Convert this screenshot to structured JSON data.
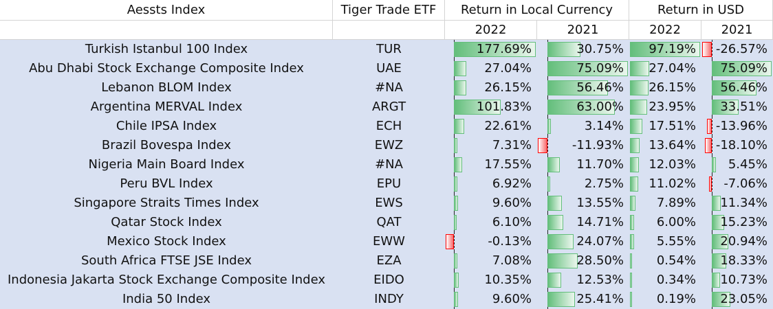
{
  "headers": {
    "asset": "Aessts Index",
    "etf": "Tiger Trade ETF",
    "local": "Return in Local Currency",
    "usd": "Return in USD",
    "y2022": "2022",
    "y2021": "2021"
  },
  "colors": {
    "positive_bar": "#63be7b",
    "negative_bar": "#f8696b",
    "row_fill": "#d9e1f2"
  },
  "rows": [
    {
      "index": "Turkish Istanbul 100 Index",
      "etf": "TUR",
      "local_2022": "177.69%",
      "local_2021": "30.75%",
      "usd_2022": "97.19%",
      "usd_2021": "-26.57%"
    },
    {
      "index": "Abu Dhabi Stock Exchange Composite Index",
      "etf": "UAE",
      "local_2022": "27.04%",
      "local_2021": "75.09%",
      "usd_2022": "27.04%",
      "usd_2021": "75.09%"
    },
    {
      "index": "Lebanon BLOM Index",
      "etf": "#NA",
      "local_2022": "26.15%",
      "local_2021": "56.46%",
      "usd_2022": "26.15%",
      "usd_2021": "56.46%"
    },
    {
      "index": "Argentina MERVAL Index",
      "etf": "ARGT",
      "local_2022": "101.83%",
      "local_2021": "63.00%",
      "usd_2022": "23.95%",
      "usd_2021": "33.51%"
    },
    {
      "index": "Chile IPSA Index",
      "etf": "ECH",
      "local_2022": "22.61%",
      "local_2021": "3.14%",
      "usd_2022": "17.51%",
      "usd_2021": "-13.96%"
    },
    {
      "index": "Brazil Bovespa Index",
      "etf": "EWZ",
      "local_2022": "7.31%",
      "local_2021": "-11.93%",
      "usd_2022": "13.64%",
      "usd_2021": "-18.10%"
    },
    {
      "index": "Nigeria Main Board Index",
      "etf": "#NA",
      "local_2022": "17.55%",
      "local_2021": "11.70%",
      "usd_2022": "12.03%",
      "usd_2021": "5.45%"
    },
    {
      "index": "Peru BVL Index",
      "etf": "EPU",
      "local_2022": "6.92%",
      "local_2021": "2.75%",
      "usd_2022": "11.02%",
      "usd_2021": "-7.06%"
    },
    {
      "index": "Singapore Straits Times Index",
      "etf": "EWS",
      "local_2022": "9.60%",
      "local_2021": "13.55%",
      "usd_2022": "7.89%",
      "usd_2021": "11.34%"
    },
    {
      "index": "Qatar Stock Index",
      "etf": "QAT",
      "local_2022": "6.10%",
      "local_2021": "14.71%",
      "usd_2022": "6.00%",
      "usd_2021": "15.23%"
    },
    {
      "index": "Mexico Stock Index",
      "etf": "EWW",
      "local_2022": "-0.13%",
      "local_2021": "24.07%",
      "usd_2022": "5.55%",
      "usd_2021": "20.94%"
    },
    {
      "index": "South Africa FTSE JSE Index",
      "etf": "EZA",
      "local_2022": "7.08%",
      "local_2021": "28.50%",
      "usd_2022": "0.54%",
      "usd_2021": "18.33%"
    },
    {
      "index": "Indonesia Jakarta Stock Exchange Composite Index",
      "etf": "EIDO",
      "local_2022": "10.35%",
      "local_2021": "12.53%",
      "usd_2022": "0.34%",
      "usd_2021": "10.73%"
    },
    {
      "index": "India 50 Index",
      "etf": "INDY",
      "local_2022": "9.60%",
      "local_2021": "25.41%",
      "usd_2022": "0.19%",
      "usd_2021": "23.05%"
    }
  ]
}
